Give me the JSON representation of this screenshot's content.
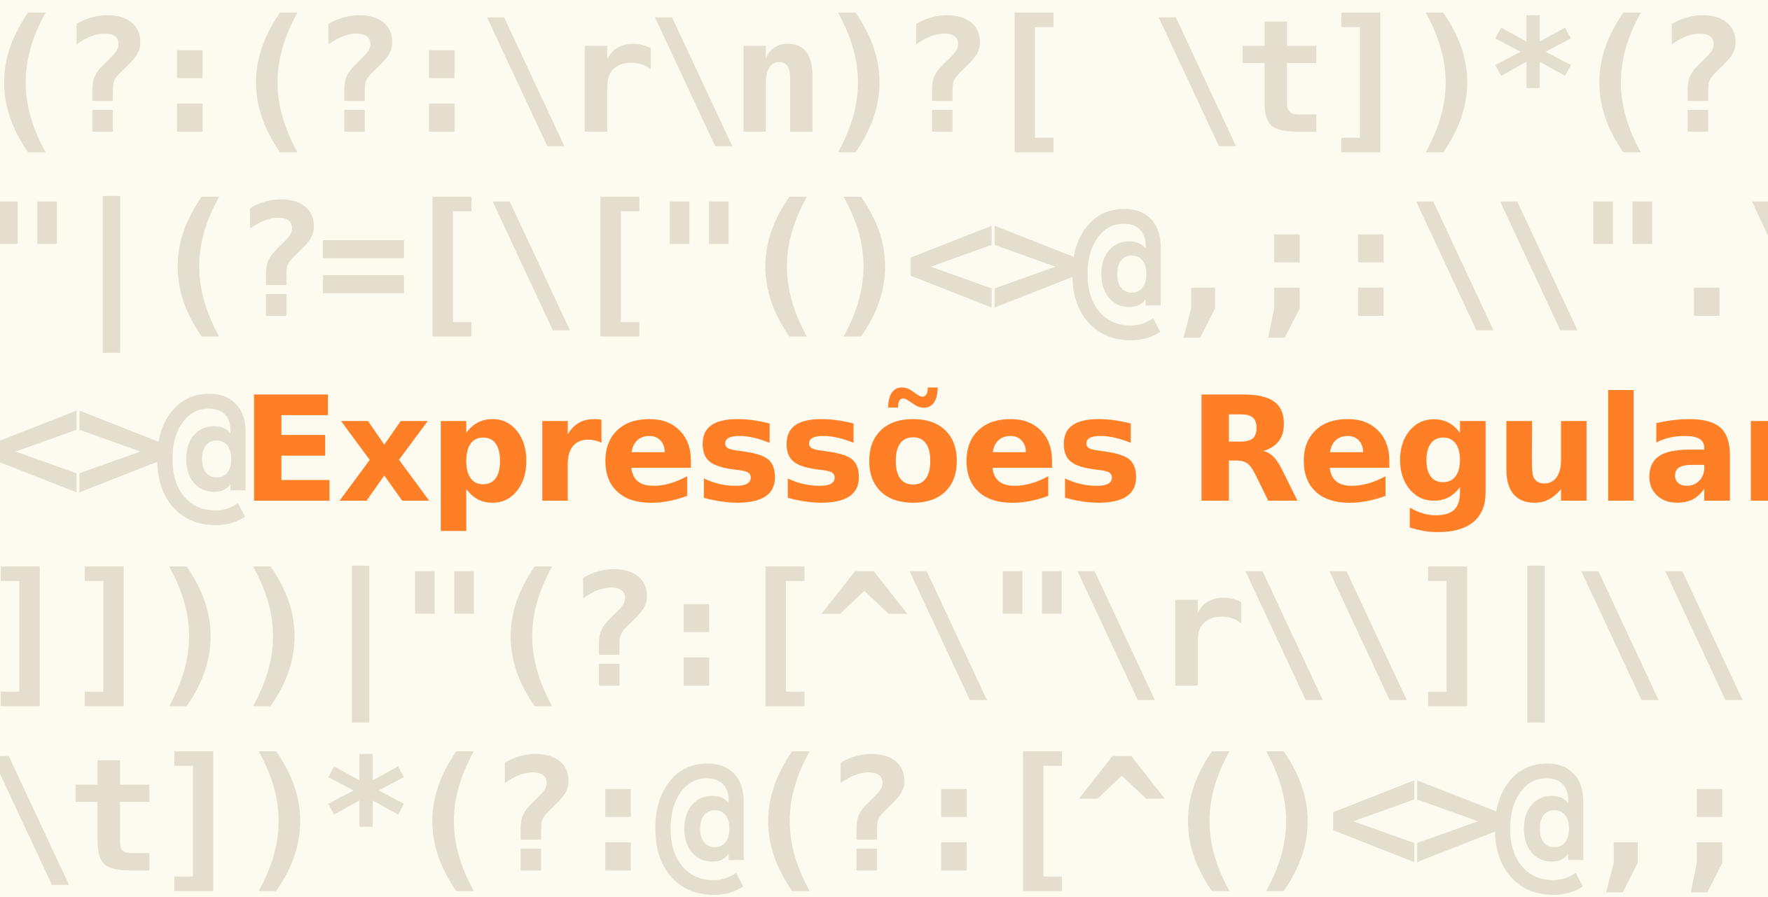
{
  "banner": {
    "pattern_lines": [
      "(?:(?:\\r\\n)?[ \\t])*(?:[^()<>@,;:\\",
      "\"|(?=[\\[\"()<>@,;:\\\\\".\\[\\]]))|\\[([^",
      "<>@",
      "]]))|\"(?:[^\\\"\\r\\\\]|\\\\.|(?:(?:\\r\\n)",
      "\\t])*(?:@(?:[^()<>@,;:\\\\\".\\[\\] \\"
    ],
    "highlight_prefix": "<>@",
    "highlight_text": "Expressões Regulares",
    "highlight_suffix": "+(?:",
    "colors": {
      "background": "#fdfbef",
      "pattern": "#e3decd",
      "highlight": "#ff7f27"
    }
  }
}
